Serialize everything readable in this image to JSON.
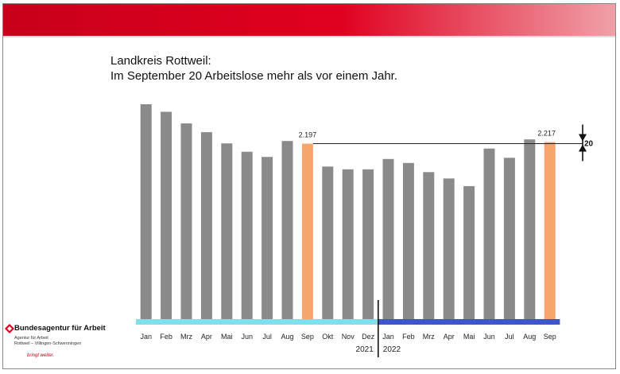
{
  "header": {
    "title_line1": "Landkreis Rottweil:",
    "title_line2": "Im September 20 Arbeitslose mehr als vor einem Jahr."
  },
  "logo": {
    "title": "Bundesagentur für Arbeit",
    "sub1": "Agentur für Arbeit",
    "sub2": "Rottweil – Villingen-Schwenningen",
    "slogan": "bringt weiter."
  },
  "colors": {
    "bar_default": "#8a8a8a",
    "bar_highlight": "#f6a66c",
    "year_2021": "#7fe0ea",
    "year_2022": "#3f56c8",
    "brand_red": "#e0001f"
  },
  "chart_data": {
    "type": "bar",
    "categories": [
      "Jan",
      "Feb",
      "Mrz",
      "Apr",
      "Mai",
      "Jun",
      "Jul",
      "Aug",
      "Sep",
      "Okt",
      "Nov",
      "Dez",
      "Jan",
      "Feb",
      "Mrz",
      "Apr",
      "Mai",
      "Jun",
      "Jul",
      "Aug",
      "Sep"
    ],
    "values": [
      2690,
      2595,
      2450,
      2340,
      2200,
      2095,
      2030,
      2230,
      2197,
      1910,
      1875,
      1875,
      2005,
      1955,
      1840,
      1760,
      1665,
      2135,
      2020,
      2250,
      2217
    ],
    "highlight_indices": [
      8,
      20
    ],
    "data_labels": [
      {
        "index": 8,
        "text": "2.197"
      },
      {
        "index": 20,
        "text": "2.217"
      }
    ],
    "difference": {
      "from_index": 8,
      "to_index": 20,
      "text": "20"
    },
    "years": [
      {
        "label": "2021",
        "start_index": 0,
        "end_index": 11
      },
      {
        "label": "2022",
        "start_index": 12,
        "end_index": 20
      }
    ],
    "ylim": [
      0,
      2700
    ],
    "title": "",
    "xlabel": "",
    "ylabel": "",
    "grid": false
  }
}
